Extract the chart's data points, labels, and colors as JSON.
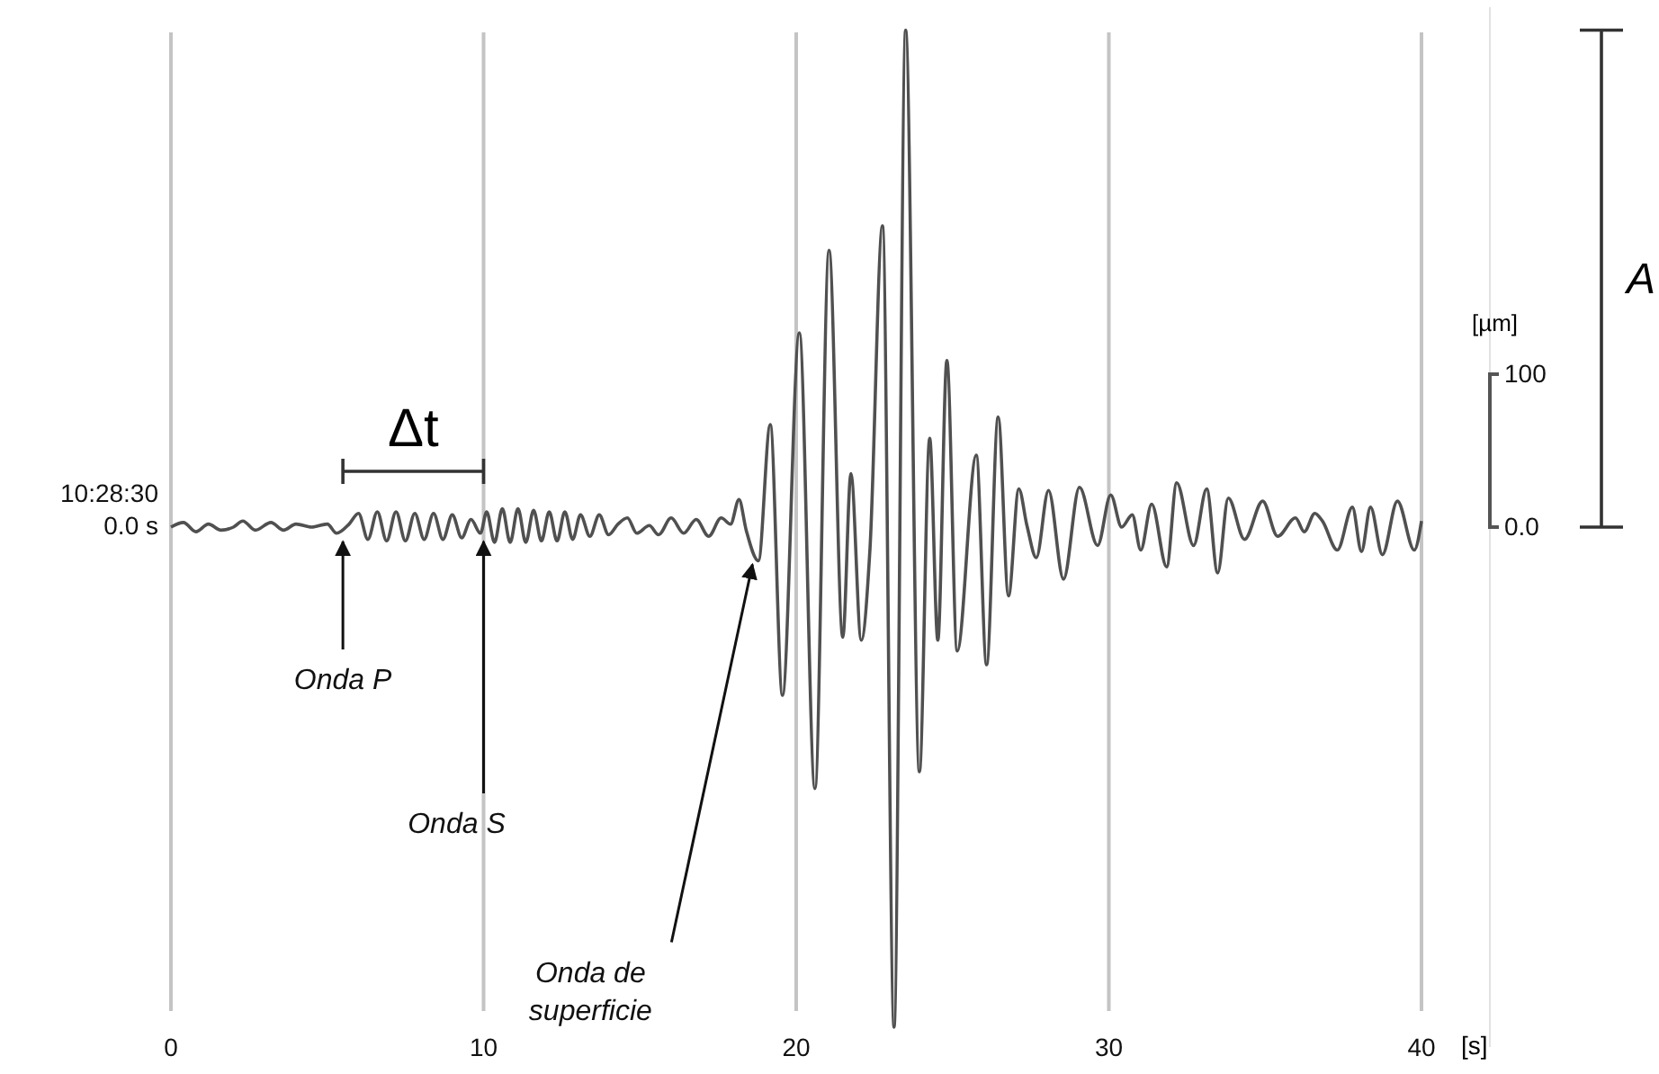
{
  "chart_data": {
    "type": "line",
    "xlabel": "[s]",
    "ylabel": "[µm]",
    "xlim": [
      0,
      40
    ],
    "ylim": [
      -340,
      340
    ],
    "xticks": [
      0,
      10,
      20,
      30,
      40
    ],
    "yticks": [
      {
        "value": 0,
        "label": "0.0"
      },
      100
    ],
    "grid": "x",
    "marker": "none",
    "line_style": "solid",
    "series": [
      {
        "color": "#505050",
        "x": [
          0,
          0.4,
          0.8,
          1.2,
          1.6,
          2.0,
          2.3,
          2.7,
          3.2,
          3.6,
          4.0,
          4.5,
          5.0,
          5.3,
          5.7,
          6.0,
          6.3,
          6.6,
          6.9,
          7.2,
          7.5,
          7.8,
          8.1,
          8.4,
          8.7,
          9.0,
          9.3,
          9.6,
          9.9,
          10.1,
          10.35,
          10.6,
          10.85,
          11.1,
          11.35,
          11.6,
          11.85,
          12.1,
          12.35,
          12.6,
          12.85,
          13.1,
          13.4,
          13.7,
          14.0,
          14.3,
          14.6,
          14.9,
          15.3,
          15.6,
          16.0,
          16.4,
          16.8,
          17.2,
          17.6,
          17.9,
          18.17,
          18.4,
          18.79,
          19.17,
          19.56,
          20.1,
          20.6,
          21.05,
          21.49,
          21.75,
          22.08,
          22.36,
          22.76,
          23.13,
          23.5,
          23.94,
          24.27,
          24.53,
          24.82,
          25.15,
          25.76,
          26.09,
          26.46,
          26.79,
          27.12,
          27.38,
          27.68,
          28.07,
          28.55,
          29.06,
          29.64,
          30.06,
          30.41,
          30.75,
          31.02,
          31.37,
          31.85,
          32.17,
          32.71,
          33.13,
          33.48,
          33.82,
          34.34,
          34.92,
          35.4,
          35.97,
          36.25,
          36.59,
          36.83,
          37.31,
          37.79,
          38.08,
          38.37,
          38.75,
          39.23,
          39.77,
          40
        ],
        "values": [
          0,
          3,
          -3,
          2,
          -2,
          0,
          4,
          -2,
          3,
          -2,
          2,
          0,
          2,
          -4,
          2,
          9,
          -8,
          10,
          -9,
          10,
          -9,
          9,
          -8,
          9,
          -8,
          8,
          -7,
          5,
          -4,
          10,
          -10,
          12,
          -10,
          12,
          -10,
          11,
          -9,
          10,
          -9,
          10,
          -8,
          8,
          -6,
          8,
          -5,
          2,
          6,
          -4,
          1,
          -5,
          6,
          -4,
          5,
          -6,
          6,
          2,
          18,
          -2,
          -22,
          67,
          -110,
          127,
          -171,
          181,
          -72,
          35,
          -74,
          -14,
          197,
          -327,
          325,
          -160,
          58,
          -74,
          109,
          -81,
          47,
          -90,
          72,
          -45,
          25,
          1,
          -20,
          24,
          -34,
          26,
          -12,
          21,
          0,
          8,
          -15,
          15,
          -26,
          29,
          -12,
          25,
          -30,
          19,
          -8,
          17,
          -6,
          6,
          -3,
          9,
          4,
          -15,
          13,
          -16,
          13,
          -18,
          17,
          -15,
          4
        ]
      }
    ],
    "annotations": [
      "10:28:30",
      "0.0 s",
      {
        "text": "Onda P",
        "x": 5.5,
        "y": 0
      },
      {
        "text": "Onda S",
        "x": 10,
        "y": 0
      },
      {
        "text": "Onda de superficie",
        "x": 18.6,
        "y": -15
      },
      "Δt",
      "A"
    ]
  }
}
